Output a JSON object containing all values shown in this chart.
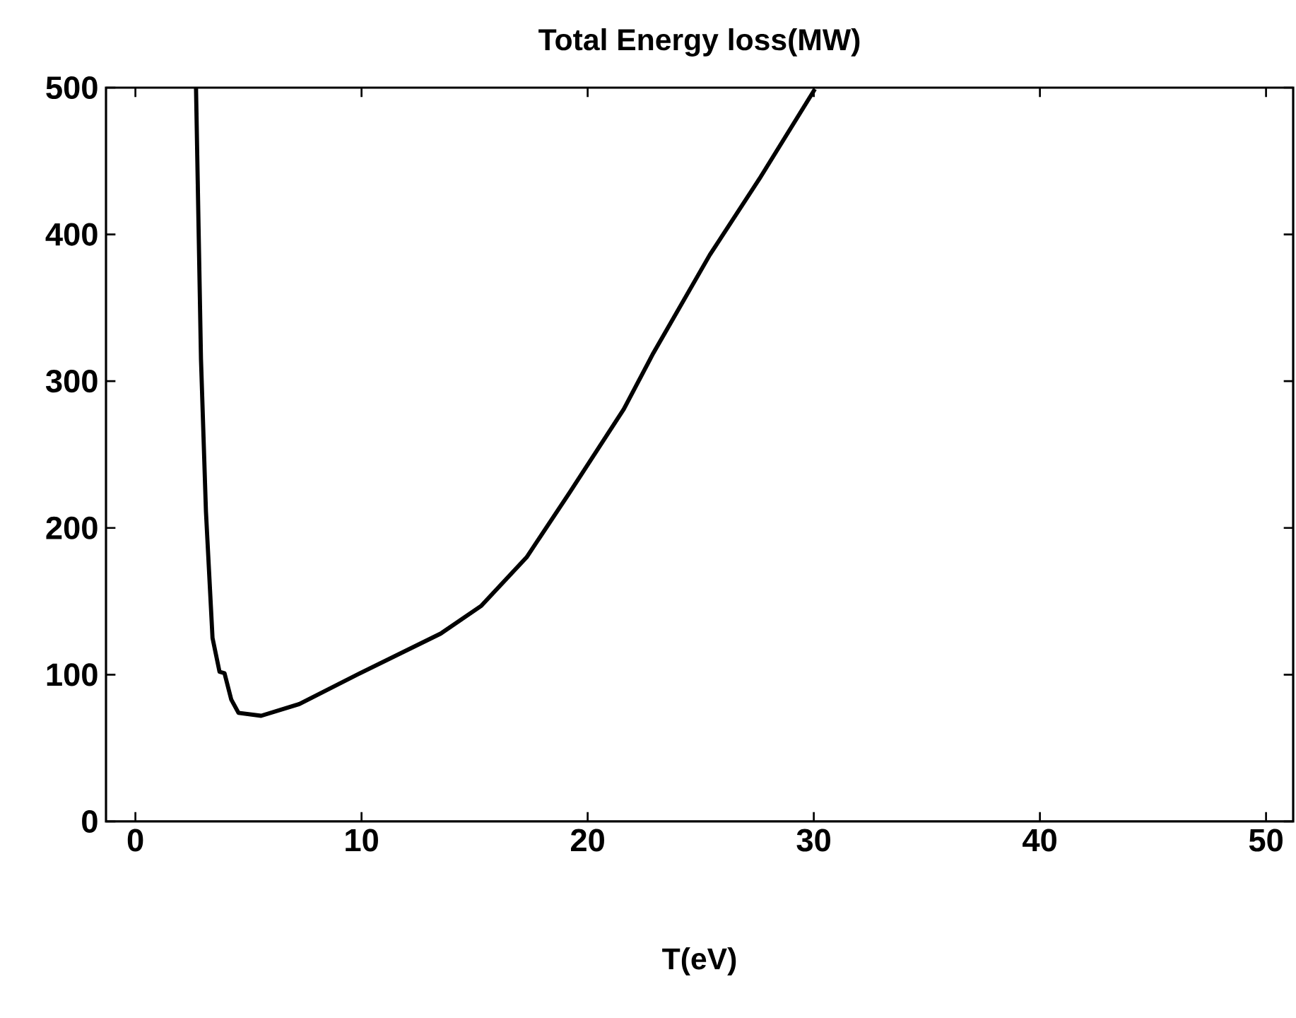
{
  "chart_data": {
    "type": "line",
    "title": "Total Energy loss(MW)",
    "xlabel": "T(eV)",
    "x": [
      2.68,
      2.9,
      3.12,
      3.41,
      3.72,
      3.94,
      4.24,
      4.56,
      5.56,
      7.25,
      9.93,
      13.5,
      15.3,
      17.3,
      19.2,
      21.6,
      22.9,
      25.4,
      27.6,
      30.05
    ],
    "series": [
      {
        "color": "#000000",
        "values": [
          500,
          315,
          211,
          125,
          102,
          101,
          83,
          74,
          72,
          80,
          101,
          128,
          147,
          180,
          224,
          281,
          319,
          386,
          438,
          499
        ]
      }
    ],
    "xlim": [
      -1.3,
      51.2
    ],
    "ylim": [
      0,
      500
    ],
    "xticks": [
      0,
      10,
      20,
      30,
      40,
      50
    ],
    "yticks": [
      0,
      100,
      200,
      300,
      400,
      500
    ],
    "marker": "none",
    "line_style": "solid"
  }
}
